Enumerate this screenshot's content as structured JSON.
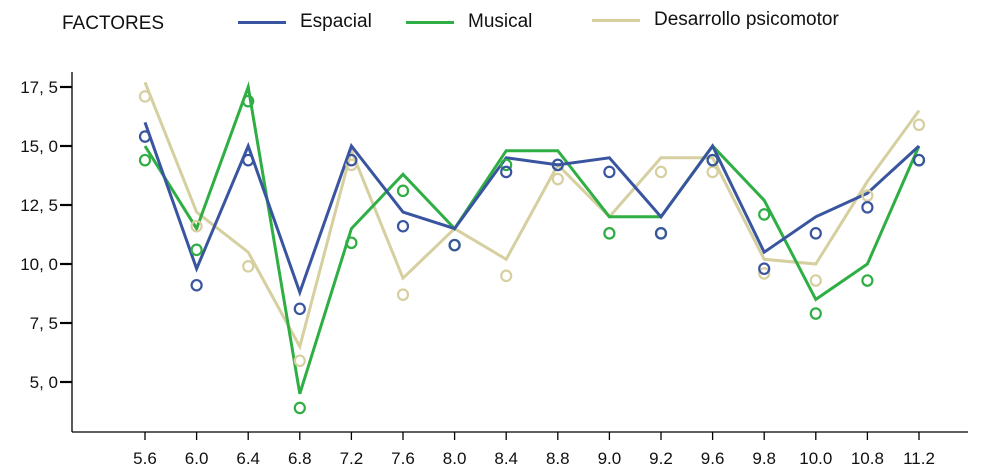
{
  "legend": {
    "title": "FACTORES",
    "items": [
      {
        "label": "Espacial",
        "color": "#3a55a0"
      },
      {
        "label": "Musical",
        "color": "#2fae44"
      },
      {
        "label": "Desarrollo psicomotor",
        "color": "#d6cfa0"
      }
    ]
  },
  "chart_data": {
    "type": "line",
    "categories": [
      "5.6",
      "6.0",
      "6.4",
      "6.8",
      "7.2",
      "7.6",
      "8.0",
      "8.4",
      "8.8",
      "9.0",
      "9.2",
      "9.6",
      "9.8",
      "10.0",
      "10.8",
      "11.2"
    ],
    "y_tick_labels": [
      "5, 0",
      "7, 5",
      "10, 0",
      "12, 5",
      "15, 0",
      "17, 5"
    ],
    "y_ticks": [
      5,
      7.5,
      10,
      12.5,
      15,
      17.5
    ],
    "ylim": [
      4.1,
      19
    ],
    "grid": false,
    "legend_position": "top",
    "series": [
      {
        "name": "Espacial",
        "color": "#3a55a0",
        "line": [
          16.0,
          9.8,
          15.0,
          8.8,
          15.0,
          12.2,
          11.5,
          14.5,
          14.2,
          14.5,
          12.0,
          15.0,
          10.5,
          12.0,
          13.0,
          15.0
        ],
        "markers": [
          15.4,
          9.1,
          14.4,
          8.1,
          14.4,
          11.6,
          10.8,
          13.9,
          14.2,
          13.9,
          11.3,
          14.4,
          9.8,
          11.3,
          12.4,
          14.4
        ]
      },
      {
        "name": "Musical",
        "color": "#2fae44",
        "line": [
          15.0,
          11.5,
          17.5,
          4.5,
          11.5,
          13.8,
          11.5,
          14.8,
          14.8,
          12.0,
          12.0,
          15.0,
          12.7,
          8.5,
          10.0,
          15.0
        ],
        "markers": [
          14.4,
          10.6,
          16.9,
          3.9,
          10.9,
          13.1,
          10.8,
          14.2,
          14.2,
          11.3,
          11.3,
          14.4,
          12.1,
          7.9,
          9.3,
          14.4
        ]
      },
      {
        "name": "Desarrollo psicomotor",
        "color": "#d6cfa0",
        "line": [
          17.7,
          12.2,
          10.5,
          6.5,
          14.8,
          9.4,
          11.5,
          10.2,
          14.2,
          12.0,
          14.5,
          14.5,
          10.2,
          10.0,
          13.5,
          16.5
        ],
        "markers": [
          17.1,
          11.6,
          9.9,
          5.9,
          14.2,
          8.7,
          10.8,
          9.5,
          13.6,
          11.3,
          13.9,
          13.9,
          9.6,
          9.3,
          12.9,
          15.9
        ]
      }
    ]
  }
}
